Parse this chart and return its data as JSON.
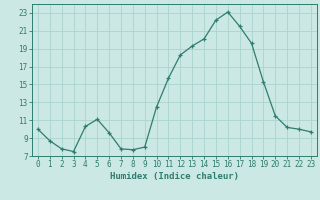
{
  "x": [
    0,
    1,
    2,
    3,
    4,
    5,
    6,
    7,
    8,
    9,
    10,
    11,
    12,
    13,
    14,
    15,
    16,
    17,
    18,
    19,
    20,
    21,
    22,
    23
  ],
  "y": [
    10,
    8.7,
    7.8,
    7.5,
    10.3,
    11.1,
    9.6,
    7.8,
    7.7,
    8.0,
    12.5,
    15.7,
    18.3,
    19.3,
    20.1,
    22.2,
    23.1,
    21.5,
    19.6,
    15.3,
    11.5,
    10.2,
    10.0,
    9.7
  ],
  "line_color": "#2e7d6e",
  "marker": "+",
  "bg_color": "#cce8e4",
  "grid_color": "#aad4cf",
  "xlabel": "Humidex (Indice chaleur)",
  "ylim": [
    7,
    24
  ],
  "xlim": [
    -0.5,
    23.5
  ],
  "yticks": [
    7,
    9,
    11,
    13,
    15,
    17,
    19,
    21,
    23
  ],
  "xticks": [
    0,
    1,
    2,
    3,
    4,
    5,
    6,
    7,
    8,
    9,
    10,
    11,
    12,
    13,
    14,
    15,
    16,
    17,
    18,
    19,
    20,
    21,
    22,
    23
  ],
  "tick_fontsize": 5.5,
  "label_fontsize": 6.5
}
